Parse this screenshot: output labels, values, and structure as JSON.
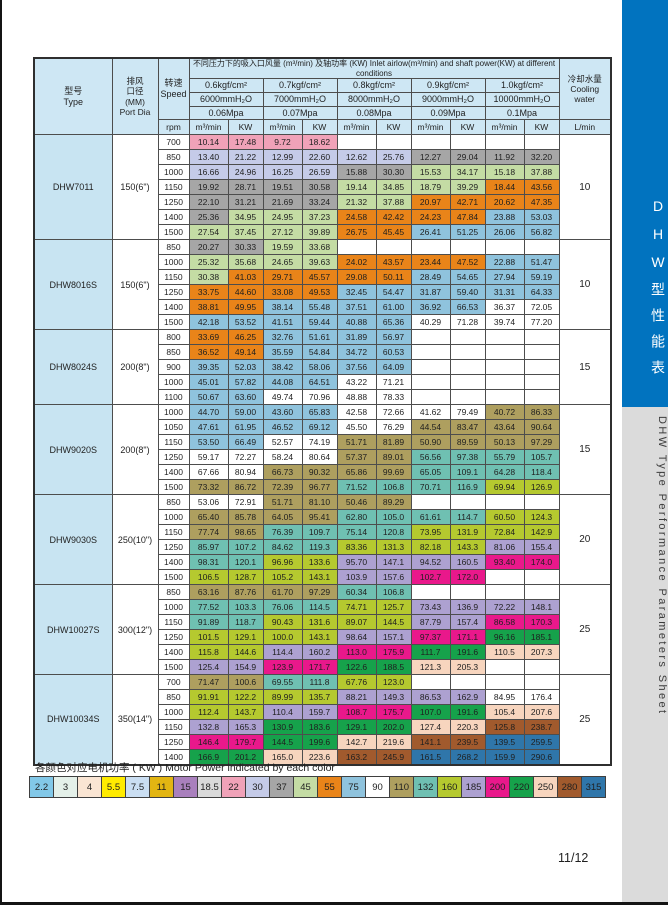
{
  "page": {
    "number": "11/12"
  },
  "sidebar": {
    "tab_cn": "DHW型性能表",
    "tab_en": "DHW Type Performance Parameters Sheet",
    "blue": "#0173BF",
    "gray": "#DBDBDB"
  },
  "legend": {
    "title": "各颜色对应电机功率 ( KW ) Motor Power indicated by each color",
    "entries": [
      {
        "power": "2.2",
        "color": "#82C8E8"
      },
      {
        "power": "3",
        "color": "#E4F0E9"
      },
      {
        "power": "4",
        "color": "#FAE5D3"
      },
      {
        "power": "5.5",
        "color": "#FFEB00"
      },
      {
        "power": "7.5",
        "color": "#CADEF2"
      },
      {
        "power": "11",
        "color": "#E2B512"
      },
      {
        "power": "15",
        "color": "#A980BD"
      },
      {
        "power": "18.5",
        "color": "#DADADA"
      },
      {
        "power": "22",
        "color": "#F0A2B8"
      },
      {
        "power": "30",
        "color": "#C5CBE8"
      },
      {
        "power": "37",
        "color": "#A6A6A6"
      },
      {
        "power": "45",
        "color": "#C4DCA4"
      },
      {
        "power": "55",
        "color": "#E98419"
      },
      {
        "power": "75",
        "color": "#8FC3DD"
      },
      {
        "power": "90",
        "color": "#FFFFFF"
      },
      {
        "power": "110",
        "color": "#AE9F5F"
      },
      {
        "power": "132",
        "color": "#6FC0B2"
      },
      {
        "power": "160",
        "color": "#B5C92F"
      },
      {
        "power": "185",
        "color": "#ADA1D1"
      },
      {
        "power": "200",
        "color": "#E9188B"
      },
      {
        "power": "220",
        "color": "#16A24B"
      },
      {
        "power": "250",
        "color": "#F7D5BE"
      },
      {
        "power": "280",
        "color": "#A15A2D"
      },
      {
        "power": "315",
        "color": "#2F76AA"
      }
    ]
  },
  "table": {
    "header": {
      "type": [
        "型号",
        "Type"
      ],
      "port": [
        "排风",
        "口径",
        "(MM)",
        "Port Dia"
      ],
      "speed": [
        "转速",
        "Speed"
      ],
      "speed_unit": "rpm",
      "title": "不同压力下的吸入口风量 (m³/min) 及轴功率 (KW) Inlet airlow(m³/min) and shaft power(KW) at different conditions",
      "pressures": [
        "0.6kgf/cm²",
        "0.7kgf/cm²",
        "0.8kgf/cm²",
        "0.9kgf/cm²",
        "1.0kgf/cm²"
      ],
      "heads_mm": [
        "6000mmH₂O",
        "7000mmH₂O",
        "8000mmH₂O",
        "9000mmH₂O",
        "10000mmH₂O"
      ],
      "pressures_mpa": [
        "0.06Mpa",
        "0.07Mpa",
        "0.08Mpa",
        "0.09Mpa",
        "0.1Mpa"
      ],
      "flow_unit": "m³/min",
      "power_unit": "KW",
      "cooling": [
        "冷却水量",
        "Cooling water"
      ],
      "cooling_unit": "L/min"
    },
    "models": [
      {
        "type": "DHW7011",
        "port": "150(6\")",
        "cooling": "10",
        "rows": [
          {
            "rpm": "700",
            "c": [
              "10.14|22",
              "17.48|22",
              "9.72|22",
              "18.62|22",
              "",
              "",
              "",
              "",
              "",
              ""
            ]
          },
          {
            "rpm": "850",
            "c": [
              "13.40|30",
              "21.22|30",
              "12.99|30",
              "22.60|30",
              "12.62|30",
              "25.76|30",
              "12.27|37",
              "29.04|37",
              "11.92|37",
              "32.20|37"
            ]
          },
          {
            "rpm": "1000",
            "c": [
              "16.66|30",
              "24.96|30",
              "16.25|30",
              "26.59|30",
              "15.88|37",
              "30.30|37",
              "15.53|45",
              "34.17|45",
              "15.18|45",
              "37.88|45"
            ]
          },
          {
            "rpm": "1150",
            "c": [
              "19.92|37",
              "28.71|37",
              "19.51|37",
              "30.58|37",
              "19.14|45",
              "34.85|45",
              "18.79|45",
              "39.29|45",
              "18.44|55",
              "43.56|55"
            ]
          },
          {
            "rpm": "1250",
            "c": [
              "22.10|37",
              "31.21|37",
              "21.69|37",
              "33.24|37",
              "21.32|45",
              "37.88|45",
              "20.97|55",
              "42.71|55",
              "20.62|55",
              "47.35|55"
            ]
          },
          {
            "rpm": "1400",
            "c": [
              "25.36|37",
              "34.95|45",
              "24.95|45",
              "37.23|45",
              "24.58|55",
              "42.42|55",
              "24.23|55",
              "47.84|55",
              "23.88|75",
              "53.03|75"
            ]
          },
          {
            "rpm": "1500",
            "c": [
              "27.54|45",
              "37.45|45",
              "27.12|45",
              "39.89|45",
              "26.75|55",
              "45.45|55",
              "26.41|75",
              "51.25|75",
              "26.06|75",
              "56.82|75"
            ]
          }
        ]
      },
      {
        "type": "DHW8016S",
        "port": "150(6\")",
        "cooling": "10",
        "rows": [
          {
            "rpm": "850",
            "c": [
              "20.27|37",
              "30.33|37",
              "19.59|45",
              "33.68|45",
              "",
              "",
              "",
              "",
              "",
              ""
            ]
          },
          {
            "rpm": "1000",
            "c": [
              "25.32|45",
              "35.68|45",
              "24.65|45",
              "39.63|45",
              "24.02|55",
              "43.57|55",
              "23.44|55",
              "47.52|55",
              "22.88|75",
              "51.47|75"
            ]
          },
          {
            "rpm": "1150",
            "c": [
              "30.38|45",
              "41.03|55",
              "29.71|55",
              "45.57|55",
              "29.08|55",
              "50.11|55",
              "28.49|75",
              "54.65|75",
              "27.94|75",
              "59.19|75"
            ]
          },
          {
            "rpm": "1250",
            "c": [
              "33.75|55",
              "44.60|55",
              "33.08|55",
              "49.53|55",
              "32.45|75",
              "54.47|75",
              "31.87|75",
              "59.40|75",
              "31.31|75",
              "64.33|75"
            ]
          },
          {
            "rpm": "1400",
            "c": [
              "38.81|55",
              "49.95|55",
              "38.14|75",
              "55.48|75",
              "37.51|75",
              "61.00|75",
              "36.92|75",
              "66.53|75",
              "36.37|90",
              "72.05|90"
            ]
          },
          {
            "rpm": "1500",
            "c": [
              "42.18|75",
              "53.52|75",
              "41.51|75",
              "59.44|75",
              "40.88|75",
              "65.36|75",
              "40.29|90",
              "71.28|90",
              "39.74|90",
              "77.20|90"
            ]
          }
        ]
      },
      {
        "type": "DHW8024S",
        "port": "200(8\")",
        "cooling": "15",
        "rows": [
          {
            "rpm": "800",
            "c": [
              "33.69|55",
              "46.25|55",
              "32.76|75",
              "51.61|75",
              "31.89|75",
              "56.97|75",
              "",
              "",
              "",
              ""
            ]
          },
          {
            "rpm": "850",
            "c": [
              "36.52|55",
              "49.14|55",
              "35.59|75",
              "54.84|75",
              "34.72|75",
              "60.53|75",
              "",
              "",
              "",
              ""
            ]
          },
          {
            "rpm": "900",
            "c": [
              "39.35|75",
              "52.03|75",
              "38.42|75",
              "58.06|75",
              "37.56|75",
              "64.09|75",
              "",
              "",
              "",
              ""
            ]
          },
          {
            "rpm": "1000",
            "c": [
              "45.01|75",
              "57.82|75",
              "44.08|75",
              "64.51|75",
              "43.22|90",
              "71.21|90",
              "",
              "",
              "",
              ""
            ]
          },
          {
            "rpm": "1100",
            "c": [
              "50.67|75",
              "63.60|75",
              "49.74|90",
              "70.96|90",
              "48.88|90",
              "78.33|90",
              "",
              "",
              "",
              ""
            ]
          }
        ]
      },
      {
        "type": "DHW9020S",
        "port": "200(8\")",
        "cooling": "15",
        "rows": [
          {
            "rpm": "1000",
            "c": [
              "44.70|75",
              "59.00|75",
              "43.60|75",
              "65.83|75",
              "42.58|90",
              "72.66|90",
              "41.62|90",
              "79.49|90",
              "40.72|110",
              "86.33|110"
            ]
          },
          {
            "rpm": "1050",
            "c": [
              "47.61|75",
              "61.95|75",
              "46.52|75",
              "69.12|75",
              "45.50|90",
              "76.29|90",
              "44.54|110",
              "83.47|110",
              "43.64|110",
              "90.64|110"
            ]
          },
          {
            "rpm": "1150",
            "c": [
              "53.50|75",
              "66.49|75",
              "52.57|90",
              "74.19|90",
              "51.71|110",
              "81.89|110",
              "50.90|110",
              "89.59|110",
              "50.13|110",
              "97.29|110"
            ]
          },
          {
            "rpm": "1250",
            "c": [
              "59.17|90",
              "72.27|90",
              "58.24|90",
              "80.64|90",
              "57.37|110",
              "89.01|110",
              "56.56|132",
              "97.38|132",
              "55.79|132",
              "105.7|132"
            ]
          },
          {
            "rpm": "1400",
            "c": [
              "67.66|90",
              "80.94|90",
              "66.73|110",
              "90.32|110",
              "65.86|110",
              "99.69|110",
              "65.05|132",
              "109.1|132",
              "64.28|132",
              "118.4|132"
            ]
          },
          {
            "rpm": "1500",
            "c": [
              "73.32|110",
              "86.72|110",
              "72.39|110",
              "96.77|110",
              "71.52|132",
              "106.8|132",
              "70.71|132",
              "116.9|132",
              "69.94|160",
              "126.9|160"
            ]
          }
        ]
      },
      {
        "type": "DHW9030S",
        "port": "250(10\")",
        "cooling": "20",
        "rows": [
          {
            "rpm": "850",
            "c": [
              "53.06|90",
              "72.91|90",
              "51.71|110",
              "81.10|110",
              "50.46|110",
              "89.29|110",
              "",
              "",
              "",
              ""
            ]
          },
          {
            "rpm": "1000",
            "c": [
              "65.40|110",
              "85.78|110",
              "64.05|110",
              "95.41|110",
              "62.80|132",
              "105.0|132",
              "61.61|132",
              "114.7|132",
              "60.50|160",
              "124.3|160"
            ]
          },
          {
            "rpm": "1150",
            "c": [
              "77.74|110",
              "98.65|110",
              "76.39|132",
              "109.7|132",
              "75.14|132",
              "120.8|132",
              "73.95|160",
              "131.9|160",
              "72.84|160",
              "142.9|160"
            ]
          },
          {
            "rpm": "1250",
            "c": [
              "85.97|132",
              "107.2|132",
              "84.62|132",
              "119.3|132",
              "83.36|160",
              "131.3|160",
              "82.18|160",
              "143.3|160",
              "81.06|185",
              "155.4|185"
            ]
          },
          {
            "rpm": "1400",
            "c": [
              "98.31|132",
              "120.1|132",
              "96.96|160",
              "133.6|160",
              "95.70|185",
              "147.1|185",
              "94.52|185",
              "160.5|185",
              "93.40|200",
              "174.0|200"
            ]
          },
          {
            "rpm": "1500",
            "c": [
              "106.5|160",
              "128.7|160",
              "105.2|160",
              "143.1|160",
              "103.9|185",
              "157.6|185",
              "102.7|200",
              "172.0|200",
              "",
              ""
            ]
          }
        ]
      },
      {
        "type": "DHW10027S",
        "port": "300(12\")",
        "cooling": "25",
        "rows": [
          {
            "rpm": "850",
            "c": [
              "63.16|110",
              "87.76|110",
              "61.70|110",
              "97.29|110",
              "60.34|132",
              "106.8|132",
              "",
              "",
              "",
              ""
            ]
          },
          {
            "rpm": "1000",
            "c": [
              "77.52|132",
              "103.3|132",
              "76.06|132",
              "114.5|132",
              "74.71|160",
              "125.7|160",
              "73.43|185",
              "136.9|185",
              "72.22|185",
              "148.1|185"
            ]
          },
          {
            "rpm": "1150",
            "c": [
              "91.89|132",
              "118.7|132",
              "90.43|160",
              "131.6|160",
              "89.07|160",
              "144.5|160",
              "87.79|185",
              "157.4|185",
              "86.58|200",
              "170.3|200"
            ]
          },
          {
            "rpm": "1250",
            "c": [
              "101.5|160",
              "129.1|160",
              "100.0|160",
              "143.1|160",
              "98.64|185",
              "157.1|185",
              "97.37|200",
              "171.1|200",
              "96.16|220",
              "185.1|220"
            ]
          },
          {
            "rpm": "1400",
            "c": [
              "115.8|160",
              "144.6|160",
              "114.4|185",
              "160.2|185",
              "113.0|200",
              "175.9|200",
              "111.7|220",
              "191.6|220",
              "110.5|250",
              "207.3|250"
            ]
          },
          {
            "rpm": "1500",
            "c": [
              "125.4|185",
              "154.9|185",
              "123.9|200",
              "171.7|200",
              "122.6|220",
              "188.5|220",
              "121.3|250",
              "205.3|250",
              "",
              ""
            ]
          }
        ]
      },
      {
        "type": "DHW10034S",
        "port": "350(14\")",
        "cooling": "25",
        "rows": [
          {
            "rpm": "700",
            "c": [
              "71.47|110",
              "100.6|110",
              "69.55|132",
              "111.8|132",
              "67.76|160",
              "123.0|160",
              "",
              "",
              "",
              ""
            ]
          },
          {
            "rpm": "850",
            "c": [
              "91.91|160",
              "122.2|160",
              "89.99|160",
              "135.7|160",
              "88.21|185",
              "149.3|185",
              "86.53|185",
              "162.9|185",
              "84.95|",
              "176.4|"
            ]
          },
          {
            "rpm": "1000",
            "c": [
              "112.4|160",
              "143.7|160",
              "110.4|185",
              "159.7|185",
              "108.7|200",
              "175.7|200",
              "107.0|220",
              "191.6|220",
              "105.4|250",
              "207.6|250"
            ]
          },
          {
            "rpm": "1150",
            "c": [
              "132.8|185",
              "165.3|185",
              "130.9|220",
              "183.6|220",
              "129.1|220",
              "202.0|220",
              "127.4|250",
              "220.3|250",
              "125.8|280",
              "238.7|280"
            ]
          },
          {
            "rpm": "1250",
            "c": [
              "146.4|200",
              "179.7|200",
              "144.5|220",
              "199.6|220",
              "142.7|250",
              "219.6|250",
              "141.1|280",
              "239.5|280",
              "139.5|315",
              "259.5|315"
            ]
          },
          {
            "rpm": "1400",
            "c": [
              "166.9|220",
              "201.2|220",
              "165.0|250",
              "223.6|250",
              "163.2|280",
              "245.9|280",
              "161.5|315",
              "268.2|315",
              "159.9|315",
              "290.6|315"
            ]
          }
        ]
      }
    ]
  }
}
